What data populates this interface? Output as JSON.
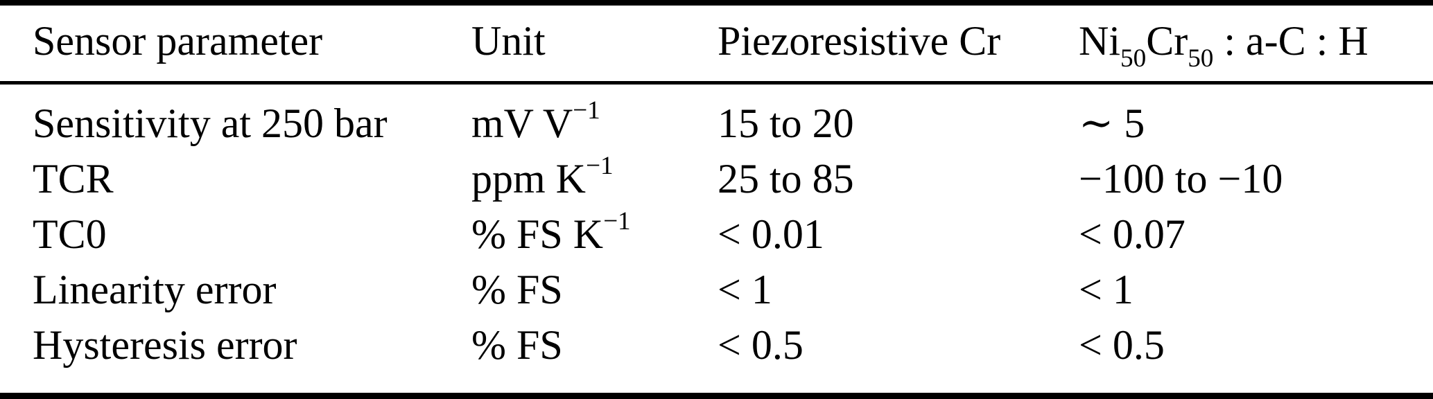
{
  "table": {
    "colors": {
      "text": "#000000",
      "background": "#ffffff",
      "rule": "#000000"
    },
    "headers": {
      "col1": "Sensor parameter",
      "col2": "Unit",
      "col3": "Piezoresistive Cr",
      "col4": {
        "p1": "Ni",
        "sub1": "50",
        "p2": "Cr",
        "sub2": "50",
        "p3": " : a-C : H"
      }
    },
    "rows": [
      {
        "param": "Sensitivity at 250 bar",
        "unit_base": "mV V",
        "unit_sup": "−1",
        "cr": "15 to 20",
        "nicr": "∼ 5"
      },
      {
        "param": "TCR",
        "unit_base": "ppm K",
        "unit_sup": "−1",
        "cr": "25 to 85",
        "nicr": "−100 to −10"
      },
      {
        "param": "TC0",
        "unit_base": "% FS K",
        "unit_sup": "−1",
        "cr": "< 0.01",
        "nicr": "< 0.07"
      },
      {
        "param": "Linearity error",
        "unit_base": "% FS",
        "unit_sup": "",
        "cr": "< 1",
        "nicr": "< 1"
      },
      {
        "param": "Hysteresis error",
        "unit_base": "% FS",
        "unit_sup": "",
        "cr": "< 0.5",
        "nicr": "< 0.5"
      }
    ]
  }
}
